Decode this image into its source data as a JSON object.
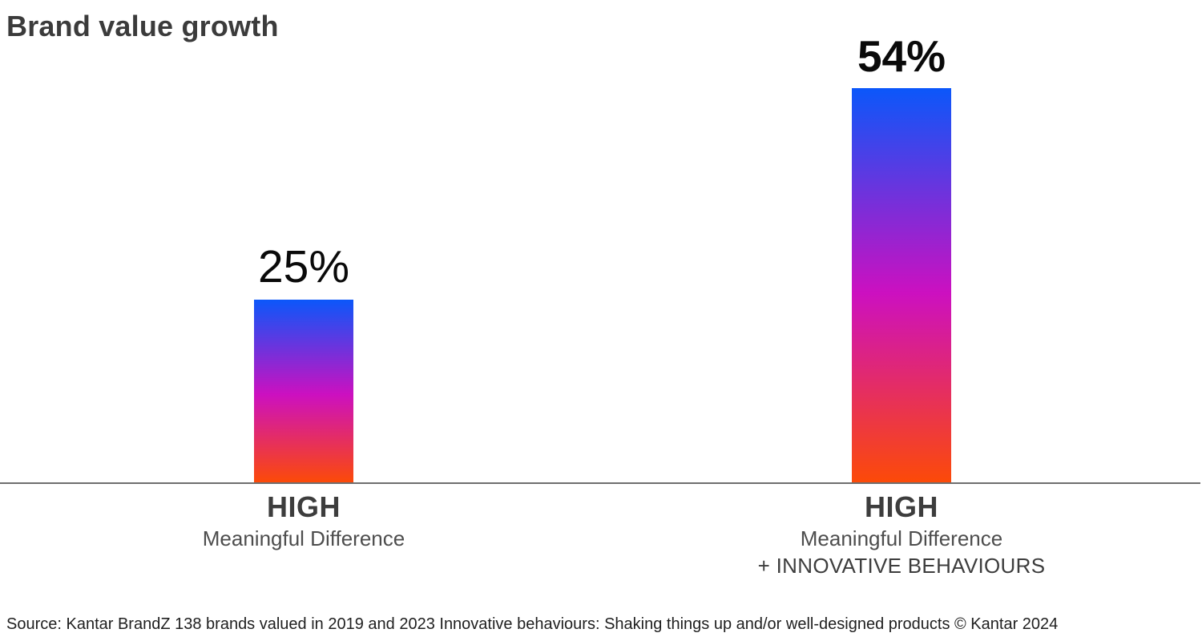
{
  "title": "Brand value growth",
  "source": "Source: Kantar BrandZ 138 brands valued in 2019 and 2023 Innovative behaviours: Shaking things up and/or well-designed products © Kantar 2024",
  "chart_data": {
    "type": "bar",
    "title": "Brand value growth",
    "unit": "percent",
    "categories": [
      "HIGH Meaningful Difference",
      "HIGH Meaningful Difference + INNOVATIVE BEHAVIOURS"
    ],
    "values": [
      25,
      54
    ],
    "data_labels": [
      "25%",
      "54%"
    ],
    "xlabel": "",
    "ylabel": "",
    "ylim": [
      0,
      54
    ],
    "grid": false,
    "legend": "none",
    "bar_gradient": [
      "#0b57fa",
      "#cc10c0",
      "#fc4a08"
    ],
    "axis_line_color": "#6f6f6f",
    "title_color": "#3b3b3b"
  },
  "bars": [
    {
      "value": 25,
      "value_label": "25%",
      "label_line1": "HIGH",
      "label_line2": "Meaningful Difference",
      "label_line3": ""
    },
    {
      "value": 54,
      "value_label": "54%",
      "label_line1": "HIGH",
      "label_line2": "Meaningful Difference",
      "label_line3": "+ INNOVATIVE BEHAVIOURS"
    }
  ]
}
